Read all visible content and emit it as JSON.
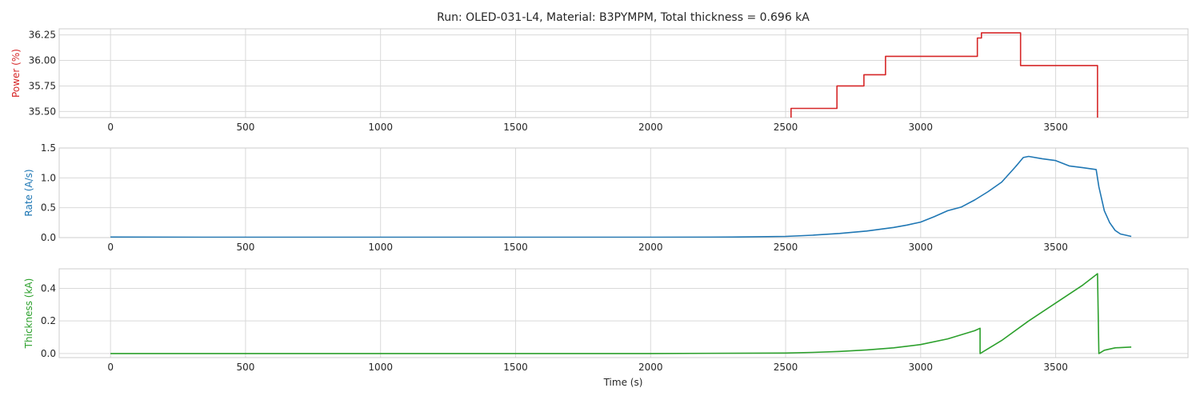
{
  "chart_data": {
    "title": "Run: OLED-031-L4, Material: B3PYMPM, Total thickness = 0.696 kA",
    "xlabel": "Time (s)",
    "x_ticks": [
      0,
      500,
      1000,
      1500,
      2000,
      2500,
      3000,
      3500
    ],
    "xlim": [
      -190,
      3990
    ],
    "grid": true,
    "subplots": [
      {
        "type": "line",
        "ylabel": "Power (%)",
        "color": "#d62728",
        "ylim": [
          35.44,
          36.31
        ],
        "y_ticks": [
          "35.50",
          "35.75",
          "36.00",
          "36.25"
        ],
        "series": {
          "x": [
            2520,
            2520,
            2690,
            2690,
            2790,
            2790,
            2870,
            2870,
            3210,
            3210,
            3225,
            3225,
            3370,
            3370,
            3655,
            3655
          ],
          "y": [
            35.44,
            35.53,
            35.53,
            35.75,
            35.75,
            35.86,
            35.86,
            36.04,
            36.04,
            36.22,
            36.22,
            36.27,
            36.27,
            35.95,
            35.95,
            35.44
          ]
        }
      },
      {
        "type": "line",
        "ylabel": "Rate (A/s)",
        "color": "#1f77b4",
        "ylim": [
          0.0,
          1.5
        ],
        "y_ticks": [
          "0.0",
          "0.5",
          "1.0",
          "1.5"
        ],
        "series": {
          "x": [
            0,
            500,
            1000,
            1500,
            2000,
            2300,
            2500,
            2600,
            2700,
            2800,
            2900,
            2950,
            3000,
            3050,
            3100,
            3150,
            3200,
            3250,
            3300,
            3350,
            3380,
            3400,
            3450,
            3500,
            3550,
            3600,
            3650,
            3660,
            3680,
            3700,
            3720,
            3740,
            3760,
            3780
          ],
          "y": [
            0.01,
            0.005,
            0.005,
            0.005,
            0.005,
            0.01,
            0.02,
            0.04,
            0.07,
            0.11,
            0.17,
            0.21,
            0.26,
            0.35,
            0.45,
            0.51,
            0.63,
            0.77,
            0.93,
            1.18,
            1.34,
            1.36,
            1.32,
            1.29,
            1.2,
            1.17,
            1.14,
            0.85,
            0.45,
            0.25,
            0.12,
            0.06,
            0.04,
            0.02
          ]
        }
      },
      {
        "type": "line",
        "ylabel": "Thickness (kA)",
        "color": "#2ca02c",
        "ylim": [
          -0.025,
          0.52
        ],
        "y_ticks": [
          "0.0",
          "0.2",
          "0.4"
        ],
        "series": {
          "x": [
            0,
            500,
            1000,
            1500,
            2000,
            2500,
            2600,
            2700,
            2800,
            2900,
            3000,
            3100,
            3200,
            3220,
            3220,
            3300,
            3400,
            3500,
            3600,
            3655,
            3660,
            3680,
            3720,
            3780
          ],
          "y": [
            0.0,
            0.0,
            0.0,
            0.0,
            0.0,
            0.003,
            0.007,
            0.013,
            0.022,
            0.035,
            0.055,
            0.09,
            0.14,
            0.155,
            0.0,
            0.08,
            0.2,
            0.31,
            0.42,
            0.49,
            0.0,
            0.02,
            0.035,
            0.04
          ]
        }
      }
    ]
  }
}
